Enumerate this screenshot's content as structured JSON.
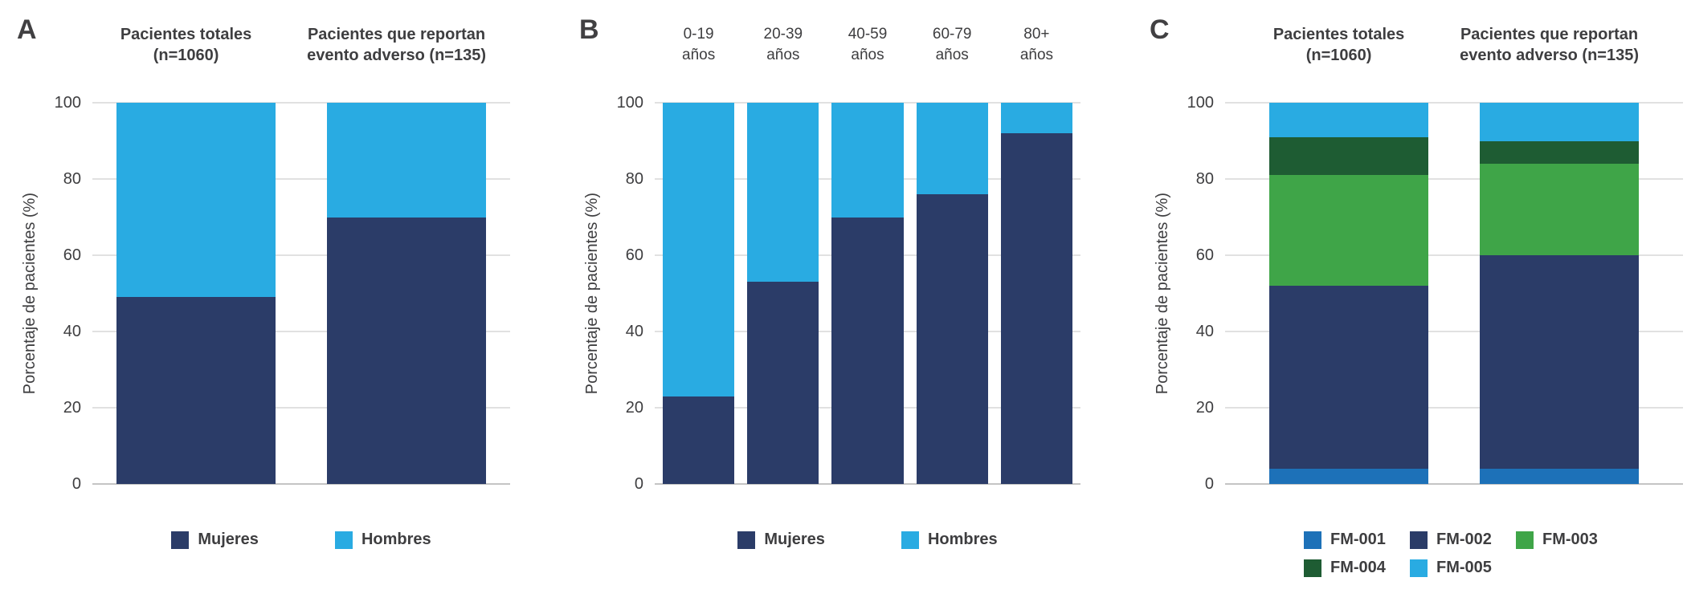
{
  "figure": {
    "background": "#ffffff",
    "text_color": "#3e3e40",
    "grid_color": "#e1e1e1",
    "baseline_color": "#c4c4c4"
  },
  "chart_data": [
    {
      "panel_label": "A",
      "type": "bar",
      "stacked": true,
      "ylabel": "Porcentaje de pacientes (%)",
      "ylim": [
        0,
        100
      ],
      "yticks": [
        0,
        20,
        40,
        60,
        80,
        100
      ],
      "grid": true,
      "legend_position": "bottom",
      "categories": [
        {
          "lines": [
            "Pacientes totales",
            "(n=1060)"
          ]
        },
        {
          "lines": [
            "Pacientes que reportan",
            "evento adverso (n=135)"
          ]
        }
      ],
      "series": [
        {
          "name": "Mujeres",
          "color": "#2b3c68",
          "values": [
            49,
            70
          ]
        },
        {
          "name": "Hombres",
          "color": "#29abe2",
          "values": [
            51,
            30
          ]
        }
      ]
    },
    {
      "panel_label": "B",
      "type": "bar",
      "stacked": true,
      "ylabel": "Porcentaje de pacientes (%)",
      "ylim": [
        0,
        100
      ],
      "yticks": [
        0,
        20,
        40,
        60,
        80,
        100
      ],
      "grid": true,
      "legend_position": "bottom",
      "categories": [
        {
          "lines": [
            "0-19",
            "años"
          ]
        },
        {
          "lines": [
            "20-39",
            "años"
          ]
        },
        {
          "lines": [
            "40-59",
            "años"
          ]
        },
        {
          "lines": [
            "60-79",
            "años"
          ]
        },
        {
          "lines": [
            "80+",
            "años"
          ]
        }
      ],
      "series": [
        {
          "name": "Mujeres",
          "color": "#2b3c68",
          "values": [
            23,
            53,
            70,
            76,
            92
          ]
        },
        {
          "name": "Hombres",
          "color": "#29abe2",
          "values": [
            77,
            47,
            30,
            24,
            8
          ]
        }
      ]
    },
    {
      "panel_label": "C",
      "type": "bar",
      "stacked": true,
      "ylabel": "Porcentaje de pacientes (%)",
      "ylim": [
        0,
        100
      ],
      "yticks": [
        0,
        20,
        40,
        60,
        80,
        100
      ],
      "grid": true,
      "legend_position": "bottom",
      "categories": [
        {
          "lines": [
            "Pacientes totales",
            "(n=1060)"
          ]
        },
        {
          "lines": [
            "Pacientes que reportan",
            "evento adverso (n=135)"
          ]
        }
      ],
      "series": [
        {
          "name": "FM-001",
          "color": "#1d71b8",
          "values": [
            4,
            4
          ]
        },
        {
          "name": "FM-002",
          "color": "#2b3c68",
          "values": [
            48,
            56
          ]
        },
        {
          "name": "FM-003",
          "color": "#3fa548",
          "values": [
            29,
            24
          ]
        },
        {
          "name": "FM-004",
          "color": "#1e5c33",
          "values": [
            10,
            6
          ]
        },
        {
          "name": "FM-005",
          "color": "#29abe2",
          "values": [
            9,
            10
          ]
        }
      ],
      "legend_rows": [
        [
          "FM-001",
          "FM-002",
          "FM-003"
        ],
        [
          "FM-004",
          "FM-005"
        ]
      ]
    }
  ]
}
